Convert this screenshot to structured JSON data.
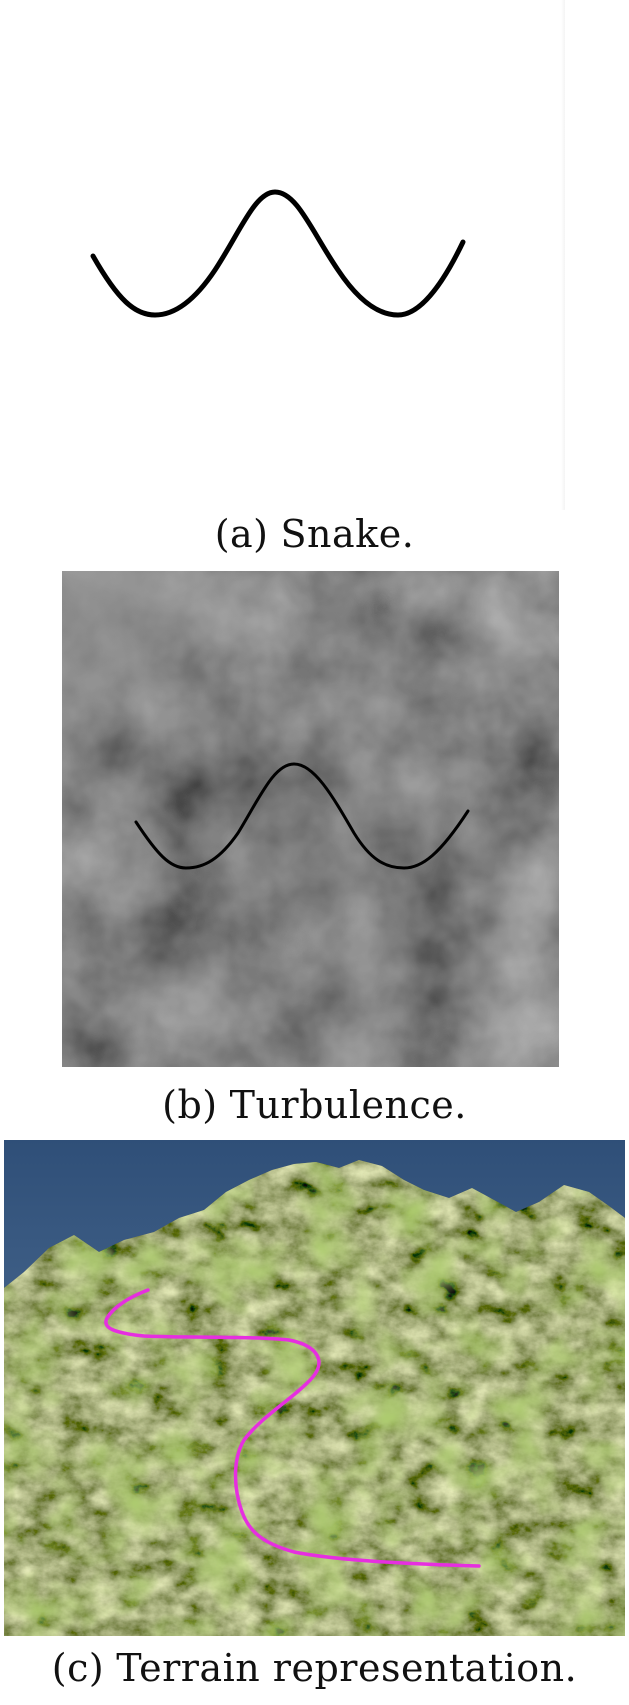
{
  "panels": [
    {
      "label": "(a)",
      "title": "Snake."
    },
    {
      "label": "(b)",
      "title": "Turbulence."
    },
    {
      "label": "(c)",
      "title": "Terrain representation."
    }
  ],
  "colors": {
    "curve": "#000000",
    "path_overlay": "#e62ee0",
    "sky": "#3e5f86",
    "grass": "#6f9a2c",
    "rock": "#4a4a3e"
  }
}
